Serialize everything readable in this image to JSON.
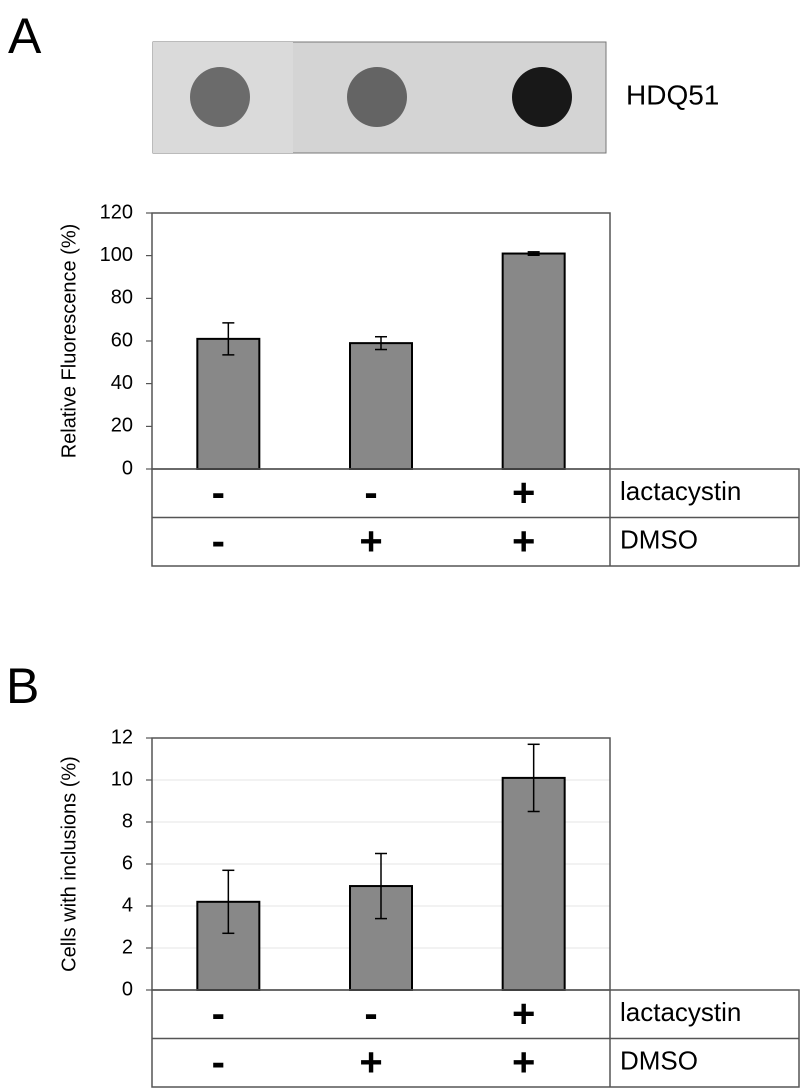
{
  "chart_data": [
    {
      "type": "bar",
      "panel": "A",
      "blot_label": "HDQ51",
      "ylabel": "Relative Fluorescence (%)",
      "values": [
        61,
        59,
        101
      ],
      "errors": [
        7.5,
        3,
        0.8
      ],
      "color": "#888888",
      "ylim": [
        0,
        120
      ],
      "yticks": [
        0,
        20,
        40,
        60,
        80,
        100,
        120
      ],
      "grid": false,
      "conditions": [
        {
          "name": "lactacystin",
          "values": [
            "-",
            "-",
            "+"
          ]
        },
        {
          "name": "DMSO",
          "values": [
            "-",
            "+",
            "+"
          ]
        }
      ]
    },
    {
      "type": "bar",
      "panel": "B",
      "ylabel": "Cells with inclusions (%)",
      "values": [
        4.2,
        4.95,
        10.1
      ],
      "errors": [
        1.5,
        1.55,
        1.6
      ],
      "color": "#888888",
      "ylim": [
        0,
        12
      ],
      "yticks": [
        0,
        2,
        4,
        6,
        8,
        10,
        12
      ],
      "grid": true,
      "conditions": [
        {
          "name": "lactacystin",
          "values": [
            "-",
            "-",
            "+"
          ]
        },
        {
          "name": "DMSO",
          "values": [
            "-",
            "+",
            "+"
          ]
        }
      ]
    }
  ]
}
